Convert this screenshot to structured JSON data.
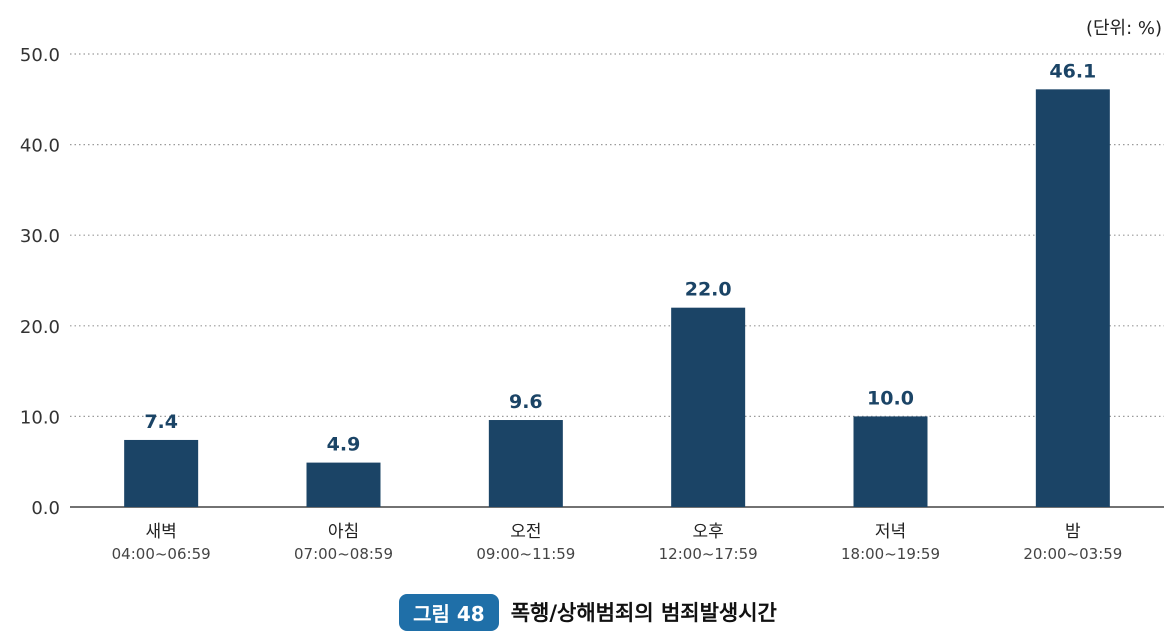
{
  "unit_label": "(단위: %)",
  "figure": {
    "badge": "그림 48",
    "title": "폭행/상해범죄의 범죄발생시간"
  },
  "colors": {
    "bar": "#1b4466",
    "badge": "#1f6fa8"
  },
  "chart_data": {
    "type": "bar",
    "categories": [
      "새벽",
      "아침",
      "오전",
      "오후",
      "저녁",
      "밤"
    ],
    "category_sublabels": [
      "04:00~06:59",
      "07:00~08:59",
      "09:00~11:59",
      "12:00~17:59",
      "18:00~19:59",
      "20:00~03:59"
    ],
    "values": [
      7.4,
      4.9,
      9.6,
      22.0,
      10.0,
      46.1
    ],
    "value_labels": [
      "7.4",
      "4.9",
      "9.6",
      "22.0",
      "10.0",
      "46.1"
    ],
    "ylim": [
      0,
      50
    ],
    "yticks": [
      "0.0",
      "10.0",
      "20.0",
      "30.0",
      "40.0",
      "50.0"
    ],
    "grid": true,
    "title": "",
    "xlabel": "",
    "ylabel": ""
  }
}
